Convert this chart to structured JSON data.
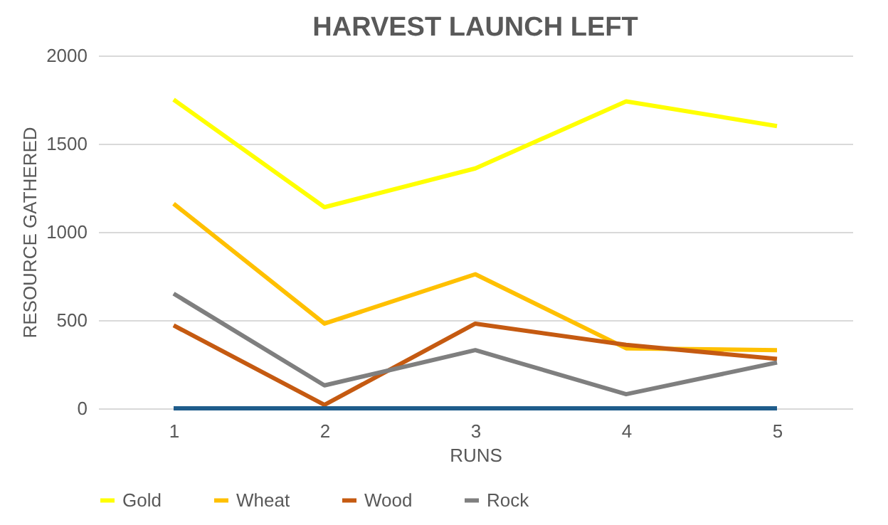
{
  "chart_data": {
    "type": "line",
    "title": "HARVEST LAUNCH LEFT",
    "xlabel": "RUNS",
    "ylabel": "RESOURCE GATHERED",
    "categories": [
      "1",
      "2",
      "3",
      "4",
      "5"
    ],
    "series": [
      {
        "name": "Gold",
        "color": "#ffff00",
        "values": [
          1750,
          1140,
          1360,
          1740,
          1600
        ]
      },
      {
        "name": "Wheat",
        "color": "#ffc000",
        "values": [
          1160,
          480,
          760,
          340,
          330
        ]
      },
      {
        "name": "Wood",
        "color": "#c55a11",
        "values": [
          470,
          20,
          480,
          360,
          280
        ]
      },
      {
        "name": "Rock",
        "color": "#7f7f7f",
        "values": [
          650,
          130,
          330,
          80,
          260
        ]
      },
      {
        "color": "#1f5c8b",
        "values": [
          0,
          0,
          0,
          0,
          0
        ]
      }
    ],
    "ylim": [
      0,
      2000
    ],
    "yticks": [
      0,
      500,
      1000,
      1500,
      2000
    ],
    "grid": "y",
    "legend": "bottom",
    "marker": "none",
    "line_style": "solid"
  }
}
